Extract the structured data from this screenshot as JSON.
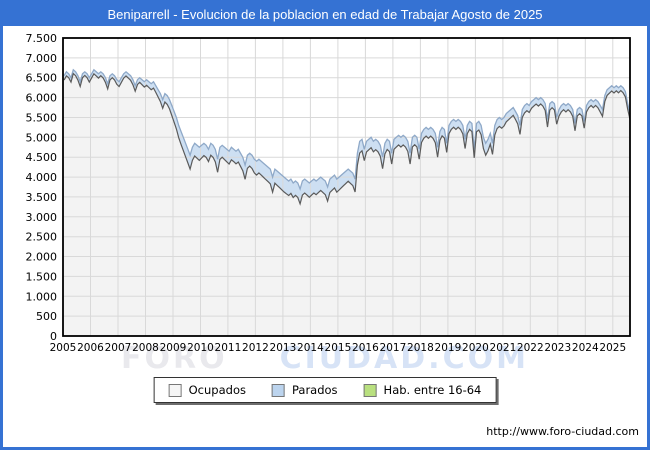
{
  "header": {
    "title": "Beniparrell - Evolucion de la poblacion en edad de Trabajar Agosto de 2025"
  },
  "watermark": {
    "part1": "FORO",
    "part2": "CIUDAD.COM"
  },
  "footer": {
    "url": "http://www.foro-ciudad.com"
  },
  "colors": {
    "frame": "#3572d3",
    "header_bg": "#3572d3",
    "grid": "#d9d9d9",
    "plot_border": "#000000",
    "ocupados_fill": "#f3f3f3",
    "ocupados_line": "#5a5a5a",
    "parados_fill": "#cddff2",
    "hab_line": "#8fa9c8",
    "legend_ocupados": "#f5f5f5",
    "legend_parados": "#bcd4ee",
    "legend_hab": "#b9e07f"
  },
  "legend": {
    "items": [
      {
        "label": "Ocupados",
        "color": "#f5f5f5"
      },
      {
        "label": "Parados",
        "color": "#bcd4ee"
      },
      {
        "label": "Hab. entre 16-64",
        "color": "#b9e07f"
      }
    ]
  },
  "chart_data": {
    "type": "area",
    "title": "Beniparrell - Evolucion de la poblacion en edad de Trabajar Agosto de 2025",
    "stacking": "white area = Ocupados, blue band = Parados, top edge of band = Hab. entre 16-64 (Ocupados + Parados)",
    "legend_labels": [
      "Ocupados",
      "Parados",
      "Hab. entre 16-64"
    ],
    "x": {
      "unit": "monthly values from Jan 2005 to Aug 2025",
      "tick_labels": [
        "2005",
        "2006",
        "2007",
        "2008",
        "2009",
        "2010",
        "2011",
        "2012",
        "2013",
        "2014",
        "2015",
        "2016",
        "2017",
        "2018",
        "2019",
        "2020",
        "2021",
        "2022",
        "2023",
        "2024",
        "2025"
      ]
    },
    "y": {
      "min": 0,
      "max": 7500,
      "step": 500,
      "tick_labels": [
        "7.500",
        "7.000",
        "6.500",
        "6.000",
        "5.500",
        "5.000",
        "4.500",
        "4.000",
        "3.500",
        "3.000",
        "2.500",
        "2.000",
        "1.500",
        "1.000",
        "500",
        "0"
      ]
    },
    "grid": true,
    "hab_16_64_monthly": {
      "2005": [
        6550,
        6650,
        6600,
        6500,
        6700,
        6650,
        6550,
        6400,
        6600,
        6650,
        6600,
        6500
      ],
      "2006": [
        6600,
        6700,
        6650,
        6600,
        6650,
        6600,
        6500,
        6350,
        6550,
        6600,
        6550,
        6450
      ],
      "2007": [
        6400,
        6500,
        6600,
        6650,
        6600,
        6550,
        6450,
        6300,
        6450,
        6500,
        6450,
        6400
      ],
      "2008": [
        6450,
        6400,
        6350,
        6400,
        6300,
        6200,
        6100,
        5950,
        6100,
        6050,
        5950,
        5800
      ],
      "2009": [
        5650,
        5500,
        5300,
        5150,
        5000,
        4850,
        4700,
        4550,
        4750,
        4850,
        4800,
        4750
      ],
      "2010": [
        4800,
        4850,
        4800,
        4700,
        4850,
        4800,
        4700,
        4450,
        4750,
        4800,
        4750,
        4700
      ],
      "2011": [
        4650,
        4750,
        4700,
        4650,
        4700,
        4600,
        4500,
        4300,
        4550,
        4600,
        4550,
        4450
      ],
      "2012": [
        4400,
        4450,
        4400,
        4350,
        4300,
        4250,
        4200,
        4000,
        4200,
        4150,
        4100,
        4050
      ],
      "2013": [
        4000,
        3950,
        3900,
        3950,
        3850,
        3900,
        3850,
        3700,
        3900,
        3950,
        3900,
        3850
      ],
      "2014": [
        3900,
        3950,
        3900,
        3950,
        4000,
        3950,
        3900,
        3750,
        3950,
        4000,
        4050,
        3950
      ],
      "2015": [
        4000,
        4050,
        4100,
        4150,
        4200,
        4150,
        4100,
        3950,
        4600,
        4900,
        4950,
        4700
      ],
      "2016": [
        4900,
        4950,
        5000,
        4900,
        4950,
        4900,
        4800,
        4500,
        4850,
        4950,
        4900,
        4600
      ],
      "2017": [
        4950,
        5000,
        5050,
        5000,
        5050,
        5000,
        4900,
        4600,
        5000,
        5050,
        5000,
        4700
      ],
      "2018": [
        5100,
        5200,
        5250,
        5200,
        5250,
        5200,
        5100,
        4750,
        5150,
        5250,
        5200,
        4850
      ],
      "2019": [
        5300,
        5400,
        5450,
        5400,
        5450,
        5400,
        5300,
        4950,
        5300,
        5400,
        5350,
        4700
      ],
      "2020": [
        5350,
        5400,
        5300,
        5000,
        4850,
        4950,
        5100,
        4850,
        5300,
        5450,
        5500,
        5450
      ],
      "2021": [
        5500,
        5600,
        5650,
        5700,
        5750,
        5650,
        5550,
        5300,
        5700,
        5800,
        5850,
        5800
      ],
      "2022": [
        5900,
        5950,
        6000,
        5950,
        6000,
        5950,
        5850,
        5450,
        5850,
        5900,
        5850,
        5500
      ],
      "2023": [
        5700,
        5800,
        5850,
        5800,
        5850,
        5800,
        5700,
        5350,
        5700,
        5750,
        5700,
        5400
      ],
      "2024": [
        5800,
        5900,
        5950,
        5900,
        5950,
        5900,
        5800,
        5700,
        6050,
        6200,
        6250,
        6300
      ],
      "2025": [
        6250,
        6300,
        6250,
        6300,
        6250,
        6150,
        5850,
        5600
      ]
    },
    "parados_monthly": {
      "2005": [
        110,
        105,
        100,
        110,
        95,
        100,
        110,
        120,
        100,
        95,
        100,
        110
      ],
      "2006": [
        105,
        100,
        105,
        110,
        100,
        105,
        115,
        130,
        105,
        100,
        105,
        115
      ],
      "2007": [
        120,
        115,
        110,
        105,
        110,
        115,
        125,
        140,
        120,
        115,
        125,
        135
      ],
      "2008": [
        140,
        145,
        150,
        160,
        170,
        185,
        200,
        220,
        210,
        220,
        235,
        250
      ],
      "2009": [
        270,
        290,
        310,
        325,
        335,
        340,
        345,
        350,
        330,
        320,
        325,
        330
      ],
      "2010": [
        320,
        310,
        305,
        310,
        300,
        305,
        315,
        330,
        305,
        300,
        310,
        315
      ],
      "2011": [
        320,
        315,
        310,
        315,
        320,
        330,
        340,
        355,
        330,
        325,
        335,
        345
      ],
      "2012": [
        350,
        345,
        350,
        355,
        360,
        365,
        370,
        380,
        355,
        360,
        365,
        370
      ],
      "2013": [
        375,
        370,
        365,
        360,
        365,
        360,
        365,
        375,
        355,
        350,
        355,
        360
      ],
      "2014": [
        355,
        350,
        345,
        340,
        335,
        340,
        345,
        355,
        335,
        330,
        325,
        330
      ],
      "2015": [
        325,
        320,
        315,
        310,
        305,
        310,
        315,
        325,
        300,
        295,
        290,
        285
      ],
      "2016": [
        270,
        265,
        260,
        265,
        260,
        265,
        275,
        290,
        265,
        255,
        260,
        270
      ],
      "2017": [
        250,
        245,
        240,
        245,
        240,
        245,
        255,
        270,
        240,
        235,
        240,
        250
      ],
      "2018": [
        230,
        225,
        220,
        225,
        220,
        225,
        235,
        250,
        225,
        215,
        220,
        230
      ],
      "2019": [
        205,
        200,
        195,
        200,
        195,
        200,
        210,
        230,
        205,
        200,
        205,
        215
      ],
      "2020": [
        210,
        215,
        230,
        280,
        300,
        290,
        270,
        280,
        245,
        230,
        225,
        220
      ],
      "2021": [
        215,
        210,
        205,
        200,
        195,
        200,
        210,
        225,
        195,
        185,
        180,
        175
      ],
      "2022": [
        170,
        165,
        160,
        165,
        160,
        165,
        175,
        190,
        165,
        155,
        160,
        170
      ],
      "2023": [
        165,
        160,
        155,
        160,
        155,
        160,
        170,
        185,
        160,
        155,
        160,
        170
      ],
      "2024": [
        160,
        155,
        150,
        155,
        150,
        155,
        160,
        170,
        150,
        145,
        140,
        135
      ],
      "2025": [
        135,
        130,
        130,
        125,
        130,
        135,
        145,
        150
      ]
    }
  }
}
